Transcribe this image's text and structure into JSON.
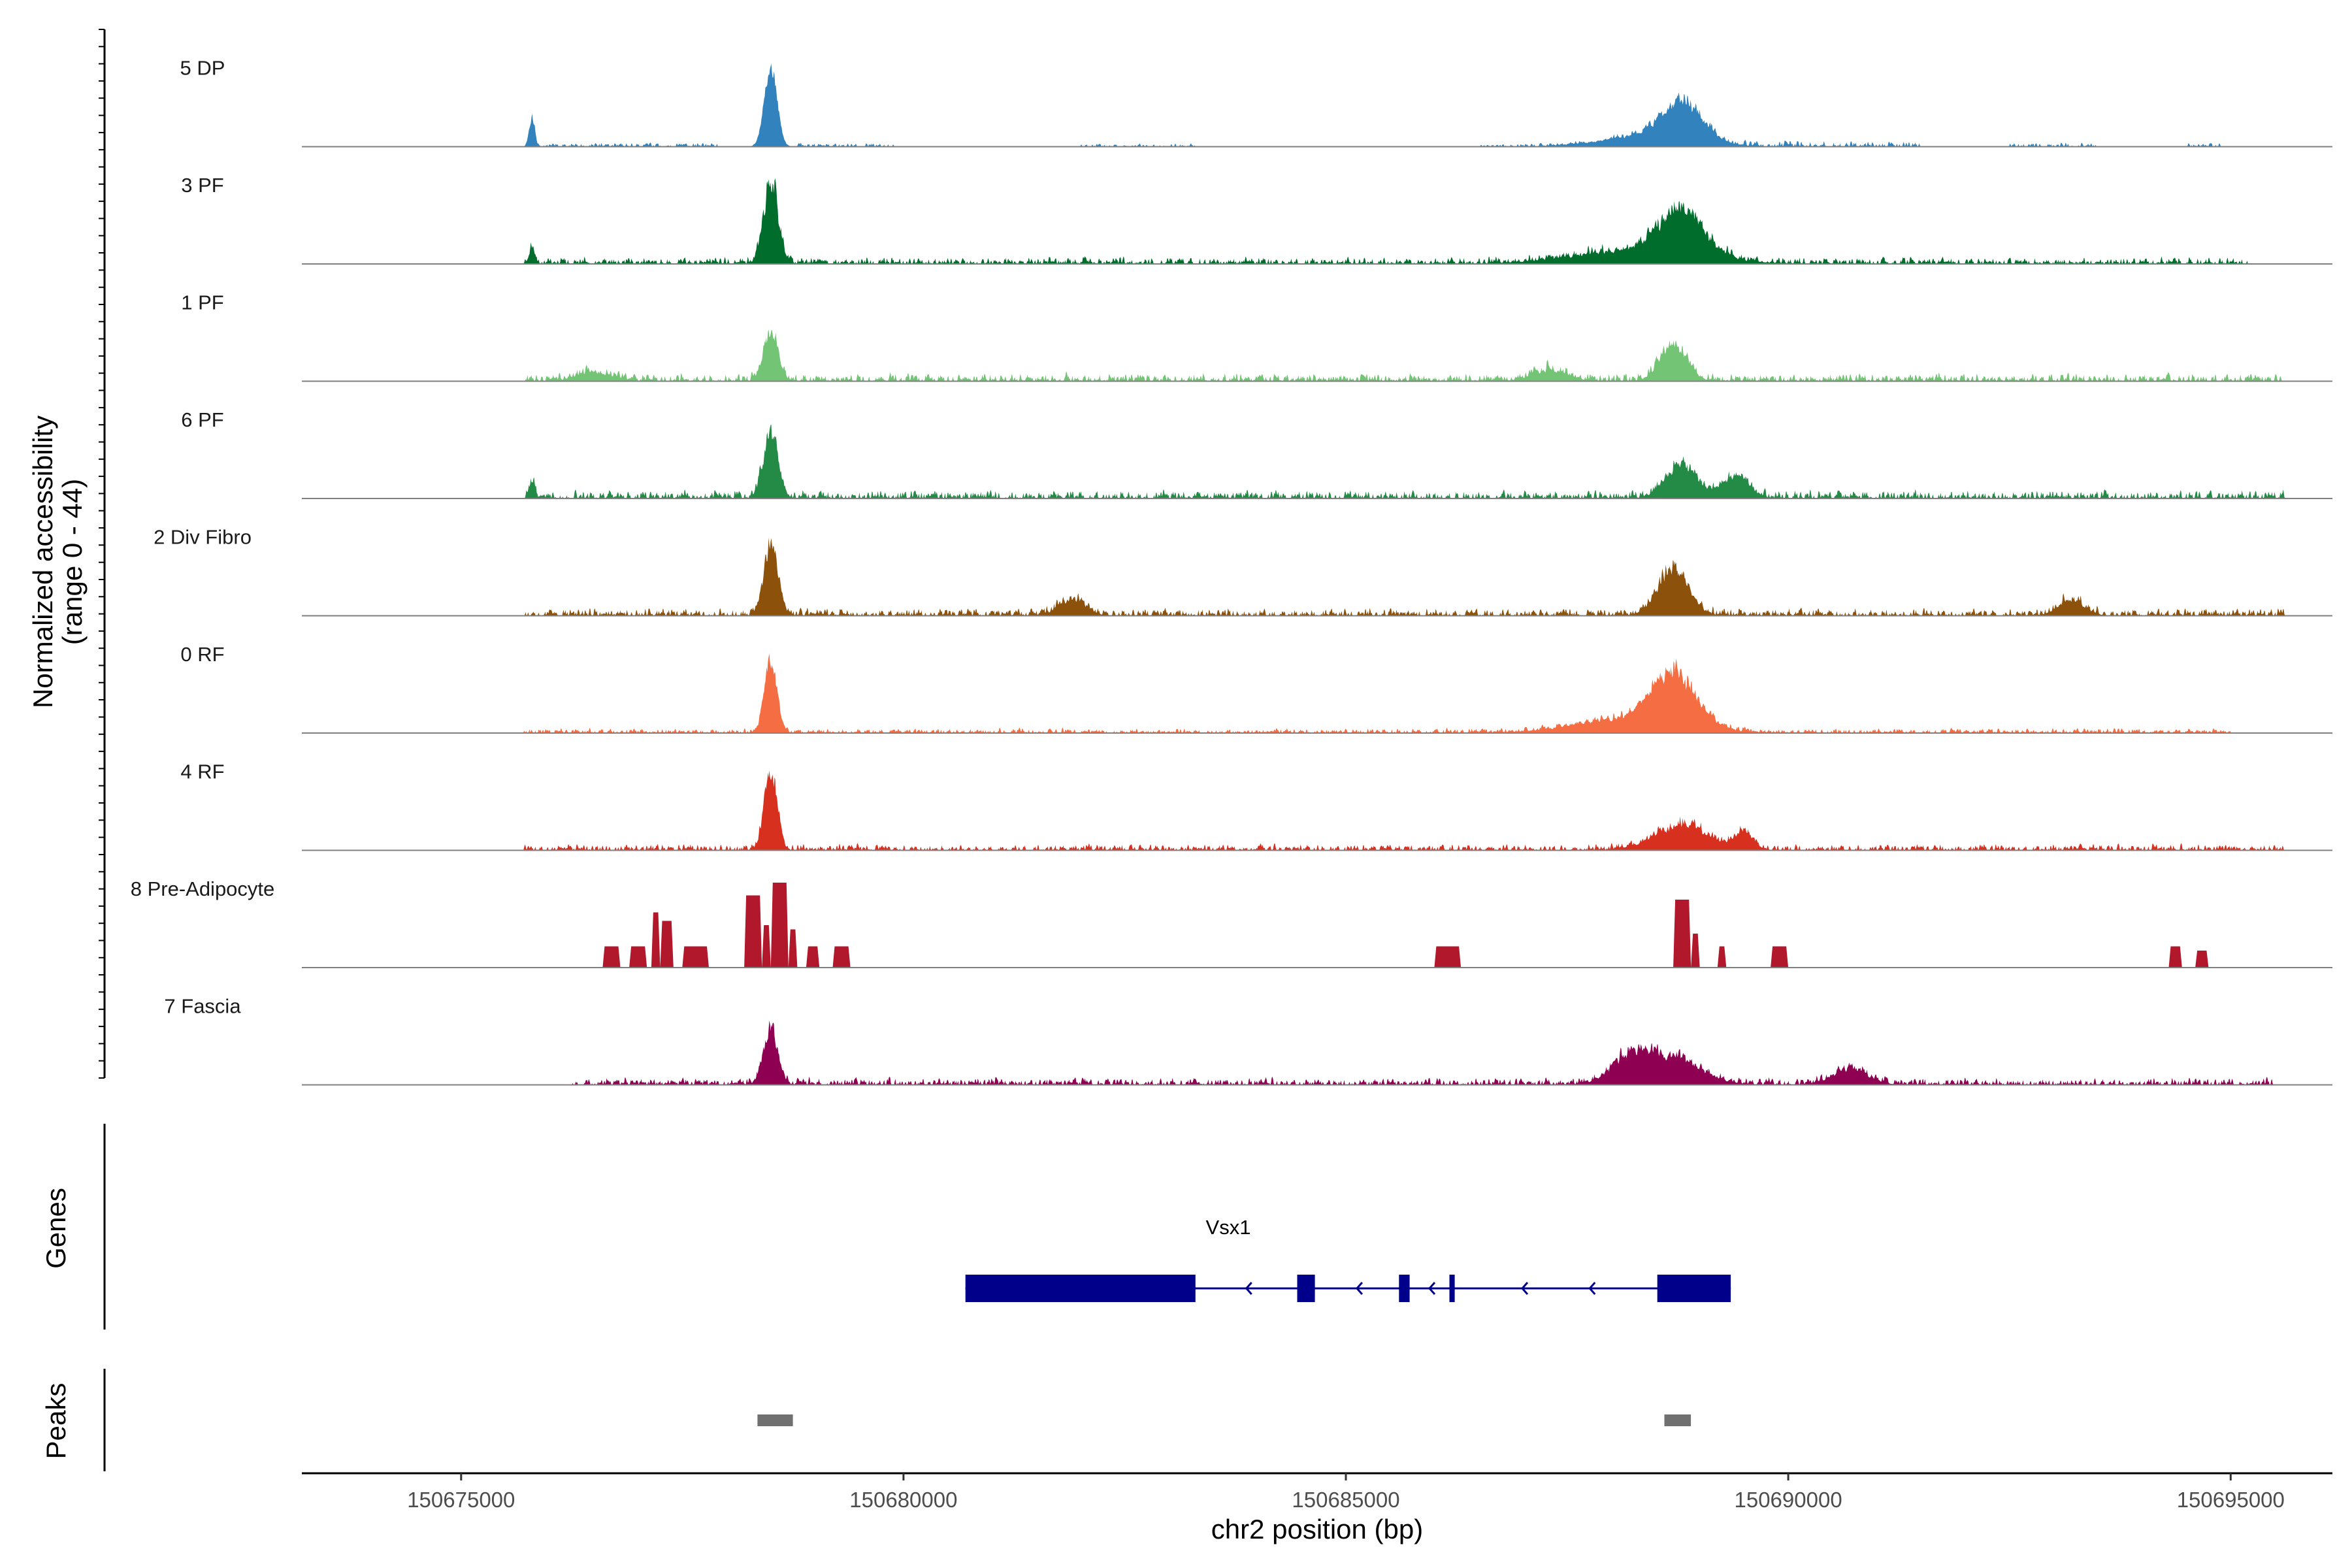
{
  "chart_data": {
    "type": "area",
    "title": "",
    "xlabel": "chr2 position (bp)",
    "ylabel_line1": "Normalized accessibility",
    "ylabel_line2": "(range 0 - 44)",
    "y_range": [
      0,
      44
    ],
    "x_range": [
      150673200,
      150696150
    ],
    "x_ticks": [
      150675000,
      150680000,
      150685000,
      150690000,
      150695000
    ],
    "x_tick_labels": [
      "150675000",
      "150680000",
      "150685000",
      "150690000",
      "150695000"
    ],
    "series": [
      {
        "name": "5 DP",
        "label": "5 DP",
        "color": "#3182BD",
        "style": "smooth",
        "seed": 11,
        "peaks": [
          [
            150678500,
            70,
            0.95
          ],
          [
            150688800,
            220,
            0.45
          ],
          [
            150688400,
            500,
            0.12
          ],
          [
            150675800,
            30,
            0.35
          ]
        ],
        "segments": [
          [
            150675700,
            150677900,
            0.05
          ],
          [
            150678800,
            150679900,
            0.05
          ],
          [
            150682000,
            150683300,
            0.04
          ],
          [
            150686500,
            150687700,
            0.04
          ],
          [
            150688000,
            150691500,
            0.07
          ],
          [
            150692500,
            150693500,
            0.05
          ],
          [
            150694500,
            150694900,
            0.05
          ]
        ]
      },
      {
        "name": "3 PF",
        "label": "3 PF",
        "color": "#006D2C",
        "style": "smooth",
        "seed": 23,
        "peaks": [
          [
            150678500,
            80,
            1.0
          ],
          [
            150688800,
            250,
            0.5
          ],
          [
            150688300,
            700,
            0.15
          ],
          [
            150675800,
            30,
            0.2
          ]
        ],
        "segments": [
          [
            150675700,
            150695200,
            0.09
          ]
        ]
      },
      {
        "name": "1 PF",
        "label": "1 PF",
        "color": "#74C476",
        "style": "smooth",
        "seed": 31,
        "peaks": [
          [
            150678500,
            80,
            0.58
          ],
          [
            150688700,
            150,
            0.42
          ],
          [
            150676500,
            200,
            0.1
          ],
          [
            150687300,
            200,
            0.12
          ]
        ],
        "segments": [
          [
            150675700,
            150695600,
            0.1
          ]
        ]
      },
      {
        "name": "6 PF",
        "label": "6 PF",
        "color": "#238B45",
        "style": "smooth",
        "seed": 47,
        "peaks": [
          [
            150678500,
            80,
            0.8
          ],
          [
            150688800,
            180,
            0.38
          ],
          [
            150689400,
            150,
            0.25
          ],
          [
            150675800,
            30,
            0.2
          ]
        ],
        "segments": [
          [
            150675700,
            150695600,
            0.11
          ]
        ]
      },
      {
        "name": "2 Div Fibro",
        "label": "2 Div Fibro",
        "color": "#8C510A",
        "style": "smooth",
        "seed": 53,
        "peaks": [
          [
            150678500,
            80,
            0.82
          ],
          [
            150688700,
            170,
            0.55
          ],
          [
            150681900,
            150,
            0.18
          ],
          [
            150693200,
            150,
            0.16
          ]
        ],
        "segments": [
          [
            150675700,
            150695600,
            0.1
          ]
        ]
      },
      {
        "name": "0 RF",
        "label": "0 RF",
        "color": "#F46D43",
        "style": "smooth",
        "seed": 61,
        "peaks": [
          [
            150678500,
            70,
            0.85
          ],
          [
            150688700,
            250,
            0.62
          ],
          [
            150688200,
            600,
            0.15
          ]
        ],
        "segments": [
          [
            150675700,
            150695000,
            0.06
          ]
        ]
      },
      {
        "name": "4 RF",
        "label": "4 RF",
        "color": "#D7301F",
        "style": "smooth",
        "seed": 71,
        "peaks": [
          [
            150678500,
            70,
            0.98
          ],
          [
            150688800,
            300,
            0.3
          ],
          [
            150689500,
            100,
            0.2
          ]
        ],
        "segments": [
          [
            150675700,
            150695600,
            0.08
          ]
        ]
      },
      {
        "name": "8 Pre-Adipocyte",
        "label": "8 Pre-Adipocyte",
        "color": "#B2182B",
        "style": "blocky",
        "seed": 83,
        "peaks": [],
        "segments": [],
        "blocks": [
          [
            150676600,
            150676800,
            0.25
          ],
          [
            150676900,
            150677100,
            0.25
          ],
          [
            150677150,
            150677250,
            0.65
          ],
          [
            150677250,
            150677400,
            0.55
          ],
          [
            150677500,
            150677800,
            0.25
          ],
          [
            150678200,
            150678400,
            0.85
          ],
          [
            150678400,
            150678500,
            0.5
          ],
          [
            150678500,
            150678700,
            1.0
          ],
          [
            150678700,
            150678800,
            0.45
          ],
          [
            150678900,
            150679050,
            0.25
          ],
          [
            150679200,
            150679400,
            0.25
          ],
          [
            150686000,
            150686300,
            0.25
          ],
          [
            150688700,
            150688900,
            0.8
          ],
          [
            150688900,
            150689000,
            0.4
          ],
          [
            150689200,
            150689300,
            0.25
          ],
          [
            150689800,
            150690000,
            0.25
          ],
          [
            150694300,
            150694450,
            0.25
          ],
          [
            150694600,
            150694750,
            0.2
          ]
        ]
      },
      {
        "name": "7 Fascia",
        "label": "7 Fascia",
        "color": "#8E0152",
        "style": "smooth",
        "seed": 97,
        "peaks": [
          [
            150678500,
            80,
            0.65
          ],
          [
            150688600,
            350,
            0.35
          ],
          [
            150688200,
            200,
            0.2
          ],
          [
            150690700,
            200,
            0.18
          ]
        ],
        "segments": [
          [
            150676200,
            150695500,
            0.09
          ]
        ]
      }
    ],
    "genes": [
      {
        "name": "Vsx1",
        "strand": "-",
        "color": "#00008B",
        "start": 150680700,
        "end": 150689350,
        "exons": [
          [
            150680700,
            150683300
          ],
          [
            150684450,
            150684650
          ],
          [
            150685600,
            150685720
          ],
          [
            150686170,
            150686230
          ],
          [
            150688520,
            150689350
          ]
        ]
      }
    ],
    "peaks": [
      [
        150678350,
        150678750
      ],
      [
        150688600,
        150688900
      ]
    ],
    "panel_titles": {
      "genes": "Genes",
      "peaks": "Peaks"
    }
  },
  "colors": {
    "gene": "#00008B",
    "peak_bar": "#707070",
    "baseline": "#808080"
  }
}
